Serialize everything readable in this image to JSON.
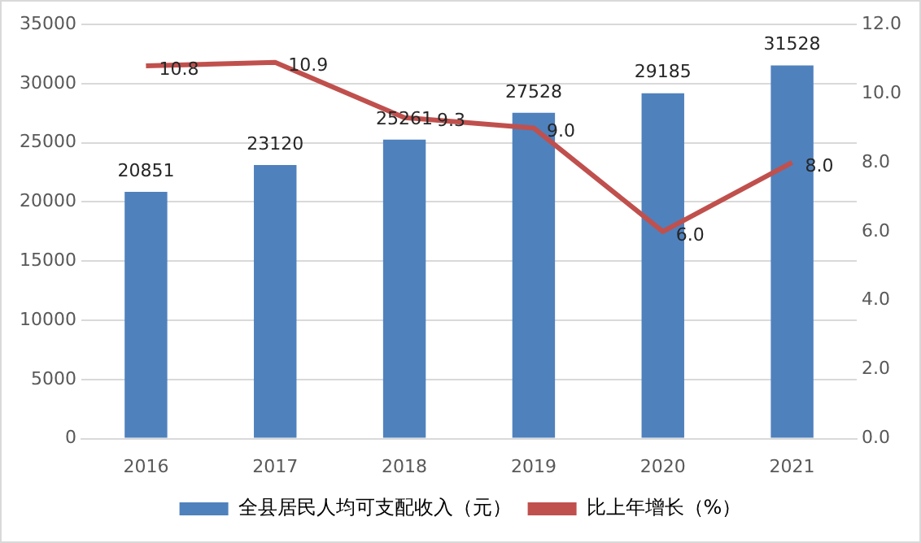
{
  "chart_data": {
    "type": "bar",
    "categories": [
      "2016",
      "2017",
      "2018",
      "2019",
      "2020",
      "2021"
    ],
    "series": [
      {
        "name": "全县居民人均可支配收入（元）",
        "color": "#4f81bd",
        "values": [
          20851,
          23120,
          25261,
          27528,
          29185,
          31528
        ]
      },
      {
        "name": "比上年增长（%）",
        "type": "line",
        "axis": "y2",
        "color": "#c0504d",
        "values": [
          10.8,
          10.9,
          9.3,
          9.0,
          6.0,
          8.0
        ],
        "value_labels": [
          "10.8",
          "10.9",
          "9.3",
          "9.0",
          "6.0",
          "8.0"
        ]
      }
    ],
    "ylim": [
      0,
      35000
    ],
    "yticks": [
      0,
      5000,
      10000,
      15000,
      20000,
      25000,
      30000,
      35000
    ],
    "y2lim": [
      0,
      12
    ],
    "y2ticks": [
      {
        "value": 0,
        "label": "0.0"
      },
      {
        "value": 2,
        "label": "2.0"
      },
      {
        "value": 4,
        "label": "4.0"
      },
      {
        "value": 6,
        "label": "6.0"
      },
      {
        "value": 8,
        "label": "8.0"
      },
      {
        "value": 10,
        "label": "10.0"
      },
      {
        "value": 12,
        "label": "12.0"
      }
    ],
    "grid": "y",
    "legend": "bottom",
    "data_labels": true,
    "marker": "none",
    "line_style": "solid"
  }
}
